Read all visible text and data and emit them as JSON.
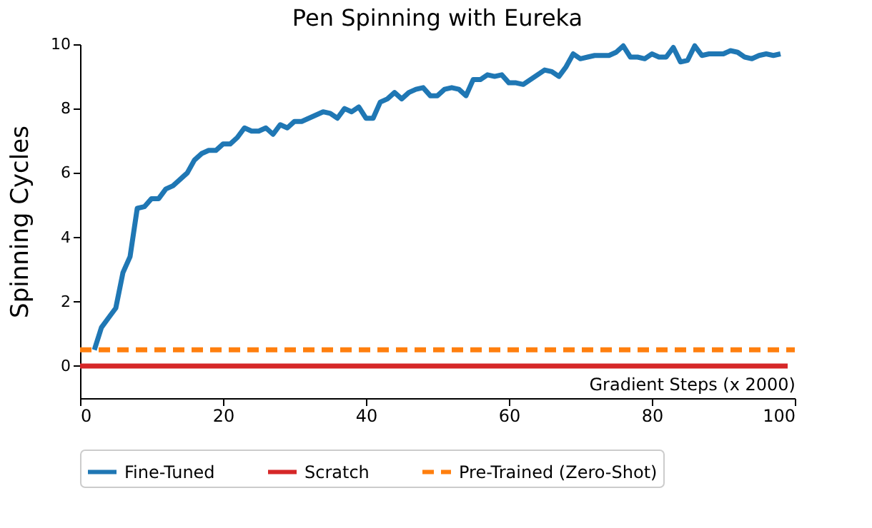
{
  "chart_data": {
    "type": "line",
    "title": "Pen Spinning with Eureka",
    "xlabel": "Gradient Steps (x 2000)",
    "ylabel": "Spinning Cycles",
    "xlim": [
      0,
      100
    ],
    "xticks": [
      0,
      20,
      40,
      60,
      80,
      100
    ],
    "ylim": [
      -1,
      10
    ],
    "yticks": [
      0,
      2,
      4,
      6,
      8,
      10
    ],
    "grid": false,
    "legend": "bottom",
    "marker": "none",
    "series": [
      {
        "name": "Fine-Tuned",
        "color": "#1f77b4",
        "line_style": "solid",
        "x": [
          2,
          3,
          4,
          5,
          6,
          7,
          8,
          9,
          10,
          11,
          12,
          13,
          14,
          15,
          16,
          17,
          18,
          19,
          20,
          21,
          22,
          23,
          24,
          25,
          26,
          27,
          28,
          29,
          30,
          31,
          32,
          33,
          34,
          35,
          36,
          37,
          38,
          39,
          40,
          41,
          42,
          43,
          44,
          45,
          46,
          47,
          48,
          49,
          50,
          51,
          52,
          53,
          54,
          55,
          56,
          57,
          58,
          59,
          60,
          61,
          62,
          63,
          64,
          65,
          66,
          67,
          68,
          69,
          70,
          71,
          72,
          73,
          74,
          75,
          76,
          77,
          78,
          79,
          80,
          81,
          82,
          83,
          84,
          85,
          86,
          87,
          88,
          89,
          90,
          91,
          92,
          93,
          94,
          95,
          96,
          97,
          98
        ],
        "values": [
          0.5,
          1.2,
          1.5,
          1.8,
          2.9,
          3.4,
          4.9,
          4.95,
          5.2,
          5.2,
          5.5,
          5.6,
          5.8,
          6.0,
          6.4,
          6.6,
          6.7,
          6.7,
          6.9,
          6.9,
          7.1,
          7.4,
          7.3,
          7.3,
          7.4,
          7.2,
          7.5,
          7.4,
          7.6,
          7.6,
          7.7,
          7.8,
          7.9,
          7.85,
          7.7,
          8.0,
          7.9,
          8.05,
          7.7,
          7.7,
          8.2,
          8.3,
          8.5,
          8.3,
          8.5,
          8.6,
          8.65,
          8.4,
          8.4,
          8.6,
          8.65,
          8.6,
          8.4,
          8.9,
          8.9,
          9.05,
          9.0,
          9.05,
          8.8,
          8.8,
          8.75,
          8.9,
          9.05,
          9.2,
          9.15,
          9.0,
          9.3,
          9.7,
          9.55,
          9.6,
          9.65,
          9.65,
          9.65,
          9.75,
          9.95,
          9.6,
          9.6,
          9.55,
          9.7,
          9.6,
          9.6,
          9.9,
          9.45,
          9.5,
          9.95,
          9.65,
          9.7,
          9.7,
          9.7,
          9.8,
          9.75,
          9.6,
          9.55,
          9.65,
          9.7,
          9.65,
          9.7
        ]
      },
      {
        "name": "Scratch",
        "color": "#d62728",
        "line_style": "solid",
        "x": [
          0,
          99
        ],
        "values": [
          0,
          0
        ]
      },
      {
        "name": "Pre-Trained (Zero-Shot)",
        "color": "#ff7f0e",
        "line_style": "dashed",
        "x": [
          0,
          100
        ],
        "values": [
          0.5,
          0.5
        ]
      }
    ]
  }
}
